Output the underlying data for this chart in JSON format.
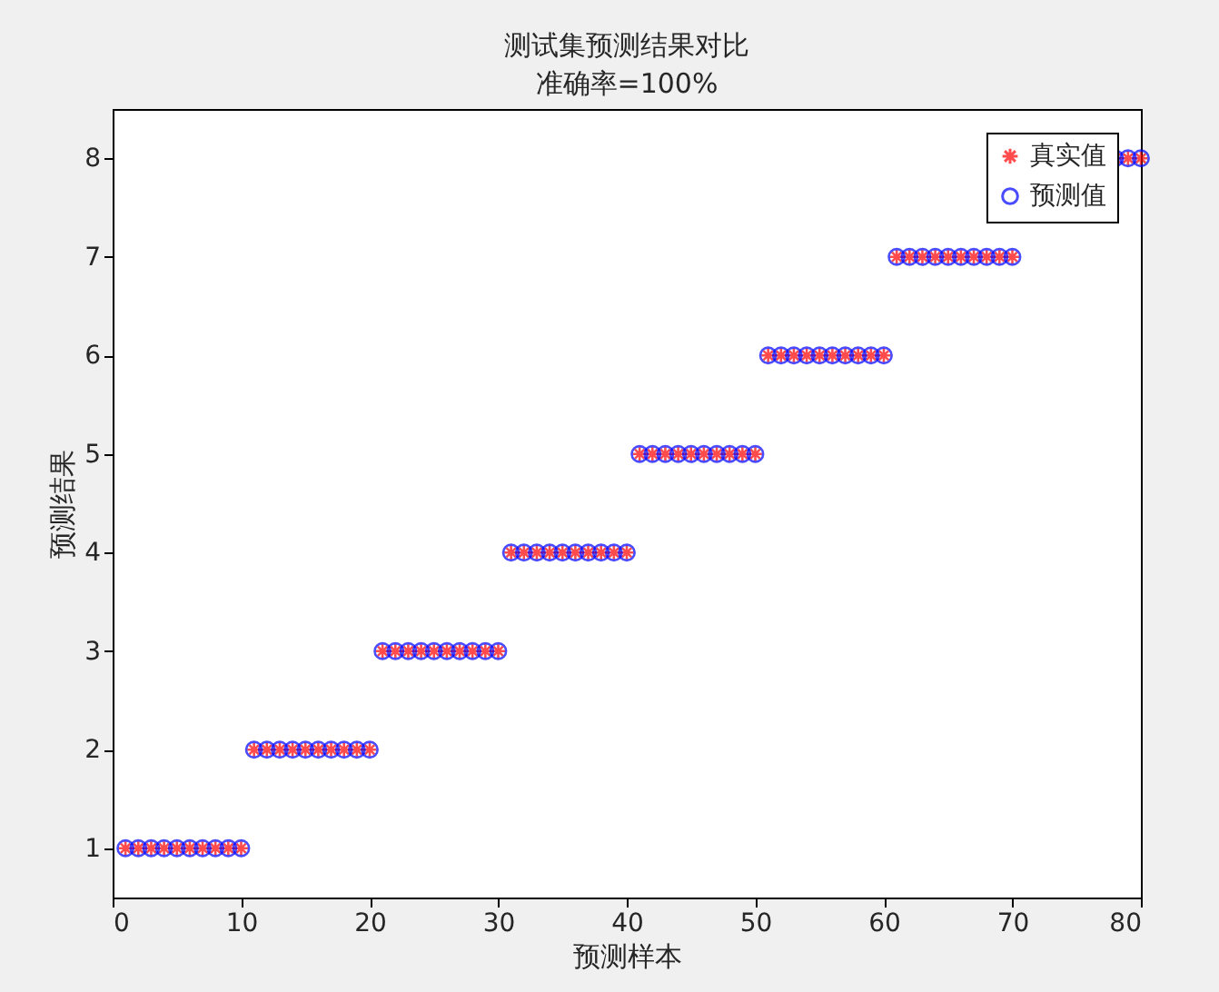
{
  "chart_data": {
    "type": "scatter",
    "title": "测试集预测结果对比",
    "subtitle": "准确率=100%",
    "xlabel": "预测样本",
    "ylabel": "预测结果",
    "x": [
      1,
      2,
      3,
      4,
      5,
      6,
      7,
      8,
      9,
      10,
      11,
      12,
      13,
      14,
      15,
      16,
      17,
      18,
      19,
      20,
      21,
      22,
      23,
      24,
      25,
      26,
      27,
      28,
      29,
      30,
      31,
      32,
      33,
      34,
      35,
      36,
      37,
      38,
      39,
      40,
      41,
      42,
      43,
      44,
      45,
      46,
      47,
      48,
      49,
      50,
      51,
      52,
      53,
      54,
      55,
      56,
      57,
      58,
      59,
      60,
      61,
      62,
      63,
      64,
      65,
      66,
      67,
      68,
      69,
      70,
      71,
      72,
      73,
      74,
      75,
      76,
      77,
      78,
      79,
      80
    ],
    "series": [
      {
        "name": "真实值",
        "color": "#ff0000",
        "marker": "cross",
        "values": [
          1,
          1,
          1,
          1,
          1,
          1,
          1,
          1,
          1,
          1,
          2,
          2,
          2,
          2,
          2,
          2,
          2,
          2,
          2,
          2,
          3,
          3,
          3,
          3,
          3,
          3,
          3,
          3,
          3,
          3,
          4,
          4,
          4,
          4,
          4,
          4,
          4,
          4,
          4,
          4,
          5,
          5,
          5,
          5,
          5,
          5,
          5,
          5,
          5,
          5,
          6,
          6,
          6,
          6,
          6,
          6,
          6,
          6,
          6,
          6,
          7,
          7,
          7,
          7,
          7,
          7,
          7,
          7,
          7,
          7,
          null,
          null,
          null,
          null,
          null,
          null,
          null,
          8,
          8,
          8
        ]
      },
      {
        "name": "预测值",
        "color": "#0000ff",
        "marker": "circle",
        "values": [
          1,
          1,
          1,
          1,
          1,
          1,
          1,
          1,
          1,
          1,
          2,
          2,
          2,
          2,
          2,
          2,
          2,
          2,
          2,
          2,
          3,
          3,
          3,
          3,
          3,
          3,
          3,
          3,
          3,
          3,
          4,
          4,
          4,
          4,
          4,
          4,
          4,
          4,
          4,
          4,
          5,
          5,
          5,
          5,
          5,
          5,
          5,
          5,
          5,
          5,
          6,
          6,
          6,
          6,
          6,
          6,
          6,
          6,
          6,
          6,
          7,
          7,
          7,
          7,
          7,
          7,
          7,
          7,
          7,
          7,
          null,
          null,
          null,
          null,
          null,
          null,
          null,
          8,
          8,
          8
        ]
      }
    ],
    "xlim": [
      0,
      80
    ],
    "xticks": [
      0,
      10,
      20,
      30,
      40,
      50,
      60,
      70,
      80
    ],
    "ylim": [
      0.5,
      8.5
    ],
    "yticks": [
      1,
      2,
      3,
      4,
      5,
      6,
      7,
      8
    ],
    "legend": "top right",
    "grid": false
  }
}
